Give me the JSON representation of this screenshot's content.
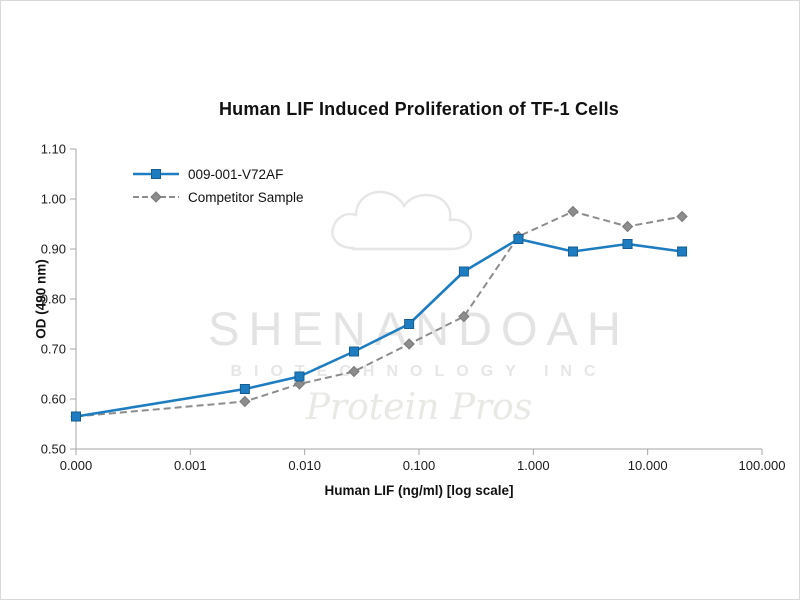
{
  "page": {
    "background": "#ffffff",
    "border_color": "#d8d8d8"
  },
  "watermark": {
    "line1": "SHENANDOAH",
    "line2": "BIOTECHNOLOGY INC",
    "line3": "Protein Pros"
  },
  "chart_data": {
    "type": "line",
    "title": "Human LIF Induced Proliferation of TF-1 Cells",
    "xlabel": "Human LIF (ng/ml) [log scale]",
    "ylabel": "OD (490 nm)",
    "x_scale": "log",
    "grid": false,
    "legend_position": "inside-top-left",
    "ylim": [
      0.5,
      1.1
    ],
    "y_tick_labels": [
      "0.50",
      "0.60",
      "0.70",
      "0.80",
      "0.90",
      "1.00",
      "1.10"
    ],
    "x_tick_labels": [
      "0.000",
      "0.001",
      "0.010",
      "0.100",
      "1.000",
      "10.000",
      "100.000"
    ],
    "x": [
      0,
      0.003,
      0.009,
      0.027,
      0.082,
      0.247,
      0.741,
      2.222,
      6.667,
      20
    ],
    "series": [
      {
        "name": "009-001-V72AF",
        "color": "#1e7dc0",
        "marker_stroke": "#155d90",
        "marker": "square",
        "line_style": "solid",
        "line_width": 2.6,
        "values": [
          0.565,
          0.62,
          0.645,
          0.695,
          0.75,
          0.855,
          0.92,
          0.895,
          0.91,
          0.895
        ]
      },
      {
        "name": "Competitor Sample",
        "color": "#8c8c8c",
        "marker_stroke": "#7a7a7a",
        "marker": "diamond",
        "line_style": "dashed",
        "line_width": 2,
        "values": [
          0.565,
          0.595,
          0.63,
          0.655,
          0.71,
          0.765,
          0.925,
          0.975,
          0.945,
          0.965
        ]
      }
    ],
    "axis_color": "#a6a6a6",
    "text_color": "#1a1a1a"
  }
}
